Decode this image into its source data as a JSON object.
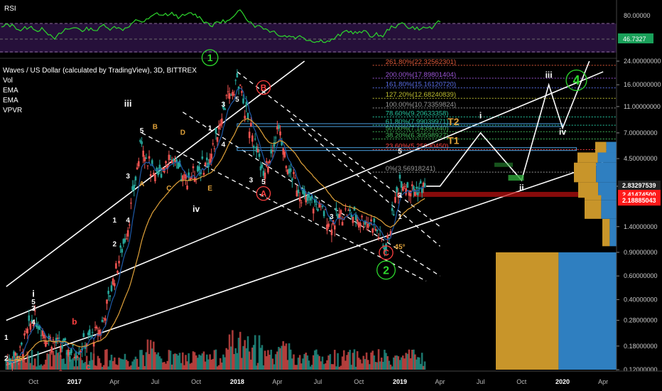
{
  "chart_data": {
    "type": "line",
    "title": "Waves / US Dollar (calculated by TradingView), 3D, BITTREX",
    "log_scale": true,
    "indicators": [
      "Vol",
      "EMA",
      "EMA",
      "VPVR"
    ],
    "x_ticks": [
      "Oct",
      "2017",
      "Apr",
      "Jul",
      "Oct",
      "2018",
      "Apr",
      "Jul",
      "Oct",
      "2019",
      "Apr",
      "Jul",
      "Oct",
      "2020",
      "Apr"
    ],
    "y_ticks": [
      "24.00000000",
      "16.00000000",
      "11.00000000",
      "7.00000000",
      "4.50000000",
      "2.80000000",
      "1.40000000",
      "0.90000000",
      "0.60000000",
      "0.40000000",
      "0.28000000",
      "0.18000000",
      "0.12000000"
    ],
    "price_badges": [
      {
        "value": "2.83297539",
        "color": "#222222"
      },
      {
        "value": "2.41474500",
        "color": "#ff1a1a"
      },
      {
        "value": "2.18885043",
        "color": "#ff1a1a"
      }
    ],
    "price_series": {
      "name": "WAVESUSD",
      "points": [
        [
          "2016-08",
          0.14
        ],
        [
          "2016-09",
          0.16
        ],
        [
          "2016-10",
          0.3
        ],
        [
          "2016-11",
          0.21
        ],
        [
          "2016-12",
          0.18
        ],
        [
          "2017-01",
          0.16
        ],
        [
          "2017-02",
          0.2
        ],
        [
          "2017-03",
          0.24
        ],
        [
          "2017-04",
          0.6
        ],
        [
          "2017-05",
          1.4
        ],
        [
          "2017-06",
          6.2
        ],
        [
          "2017-07",
          3.0
        ],
        [
          "2017-08",
          4.8
        ],
        [
          "2017-09",
          3.1
        ],
        [
          "2017-10",
          3.6
        ],
        [
          "2017-11",
          4.4
        ],
        [
          "2017-12",
          10.5
        ],
        [
          "2018-01",
          17.5
        ],
        [
          "2018-02",
          7.3
        ],
        [
          "2018-03",
          3.3
        ],
        [
          "2018-04",
          7.6
        ],
        [
          "2018-05",
          3.5
        ],
        [
          "2018-06",
          2.2
        ],
        [
          "2018-07",
          2.0
        ],
        [
          "2018-08",
          1.5
        ],
        [
          "2018-09",
          1.8
        ],
        [
          "2018-10",
          1.6
        ],
        [
          "2018-11",
          1.5
        ],
        [
          "2018-12",
          0.95
        ],
        [
          "2019-01",
          3.2
        ],
        [
          "2019-02",
          2.6
        ],
        [
          "2019-03",
          2.8
        ]
      ]
    },
    "projection": {
      "points": [
        [
          "2019-04",
          2.8
        ],
        [
          "2019-07",
          7.0
        ],
        [
          "2019-10",
          3.1
        ],
        [
          "2019-12",
          16.0
        ],
        [
          "2020-01",
          7.6
        ],
        [
          "2020-03",
          24.0
        ]
      ]
    },
    "fib_levels": [
      {
        "label": "261.80%(22.32562301)",
        "color": "#e05a3a"
      },
      {
        "label": "200.00%(17.89801404)",
        "color": "#9c56d8"
      },
      {
        "label": "161.80%(15.16120720)",
        "color": "#5a6ee8"
      },
      {
        "label": "127.20%(12.68240839)",
        "color": "#bfbf30"
      },
      {
        "label": "100.00%(10.73359824)",
        "color": "#9a9a9a"
      },
      {
        "label": "78.60%(9.20633358)",
        "color": "#26c6a0"
      },
      {
        "label": "61.80%(7.99039971)",
        "color": "#26c6a0"
      },
      {
        "label": "50.00%(7.14390340)",
        "color": "#41b85a"
      },
      {
        "label": "38.20%(6.30598927)",
        "color": "#41b85a"
      },
      {
        "label": "23.60%(5.25990450)",
        "color": "#ff4040"
      },
      {
        "label": "0%(3.56918241)",
        "color": "#9a9a9a"
      }
    ],
    "wave_labels": {
      "white": [
        "i",
        "ii",
        "iii",
        "iv",
        "1",
        "2",
        "3",
        "4",
        "5",
        "iii",
        "iv",
        "i",
        "ii"
      ],
      "red": [
        "a",
        "b",
        "c",
        "A",
        "B",
        "C"
      ],
      "orange": [
        "A",
        "B",
        "C",
        "D",
        "E"
      ],
      "circled_green": [
        "1",
        "2",
        "4"
      ],
      "yellow": [
        "T1",
        "T2"
      ],
      "angle": "45°"
    },
    "rsi": {
      "name": "RSI",
      "y_ticks": [
        "80.00000",
        "46.7327"
      ],
      "current": "46.7327"
    },
    "vpvr_colors": [
      "#c8952a",
      "#2f7fc0"
    ],
    "colors": {
      "up": "#26a69a",
      "down": "#ef5350",
      "rsi_line": "#2dd82d",
      "ema_fast": "#1e5aa8",
      "ema_slow": "#e0a23a",
      "channel": "#ffffff"
    }
  }
}
